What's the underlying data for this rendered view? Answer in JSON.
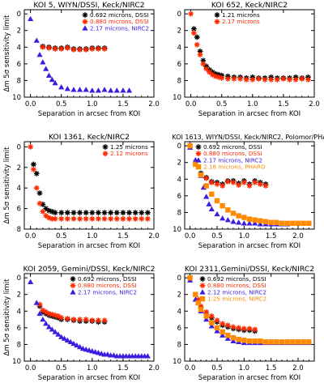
{
  "colors": {
    "black": "#000000",
    "red": "#ff2a00",
    "blue": "#3a1ee0",
    "orange": "#ff8a00"
  },
  "chart_data": [
    {
      "type": "scatter",
      "title": "KOI 5, WIYN/DSSI, Keck/NIRC2",
      "xlabel": "Separation in arcsec from KOI",
      "ylabel": "Δm 5σ sensitivity limit",
      "xlim": [
        -0.1,
        2.0
      ],
      "ylim": [
        10,
        -0.5
      ],
      "xticks": [
        0.0,
        0.5,
        1.0,
        1.5,
        2.0
      ],
      "xtick_labels": [
        "0.0",
        "0.5",
        "1.0",
        "1.5",
        "2.0"
      ],
      "yticks": [
        0,
        2,
        4,
        6,
        8,
        10
      ],
      "ytick_labels": [
        "0",
        "2",
        "4",
        "6",
        "8",
        "10"
      ],
      "legend_position": "top-right",
      "series": [
        {
          "name": "0.692 microns, DSSI",
          "color": "black",
          "marker": "asterisk",
          "x": [
            0.2,
            0.3,
            0.4,
            0.5,
            0.6,
            0.7,
            0.8,
            0.9,
            1.0,
            1.1,
            1.2
          ],
          "y": [
            3.9,
            4.0,
            4.1,
            4.1,
            4.0,
            4.2,
            4.2,
            4.2,
            4.1,
            4.1,
            4.1
          ]
        },
        {
          "name": "0.880 microns, DSSI",
          "color": "red",
          "marker": "asterisk",
          "x": [
            0.2,
            0.3,
            0.4,
            0.5,
            0.6,
            0.7,
            0.8,
            0.9,
            1.0,
            1.1,
            1.2
          ],
          "y": [
            4.0,
            4.1,
            4.2,
            4.2,
            4.1,
            4.3,
            4.3,
            4.3,
            4.2,
            4.2,
            4.2
          ]
        },
        {
          "name": "2.17 microns, NIRC2",
          "color": "blue",
          "marker": "triangle",
          "x": [
            0.0,
            0.1,
            0.15,
            0.2,
            0.25,
            0.3,
            0.35,
            0.4,
            0.5,
            0.6,
            0.7,
            0.8,
            0.9,
            1.0,
            1.1,
            1.2,
            1.3,
            1.4,
            1.5,
            1.6
          ],
          "y": [
            0.6,
            3.2,
            4.9,
            5.8,
            6.6,
            7.4,
            7.9,
            8.3,
            8.8,
            9.0,
            9.1,
            9.1,
            9.1,
            9.2,
            9.2,
            9.1,
            9.2,
            9.2,
            9.2,
            9.2
          ]
        }
      ]
    },
    {
      "type": "scatter",
      "title": "KOI 652, Keck/NIRC2",
      "xlabel": "Separation in arcsec from KOI",
      "ylabel": "",
      "xlim": [
        -0.1,
        2.0
      ],
      "ylim": [
        10,
        -0.5
      ],
      "xticks": [
        0.0,
        0.5,
        1.0,
        1.5,
        2.0
      ],
      "xtick_labels": [
        "0.0",
        "0.5",
        "1.0",
        "1.5",
        "2.0"
      ],
      "yticks": [
        0,
        2,
        4,
        6,
        8,
        10
      ],
      "ytick_labels": [
        "0",
        "2",
        "4",
        "6",
        "8",
        "10"
      ],
      "legend_position": "top-right",
      "series": [
        {
          "name": "1.21 microns",
          "color": "black",
          "marker": "asterisk",
          "x": [
            0.05,
            0.1,
            0.15,
            0.2,
            0.25,
            0.3,
            0.35,
            0.4,
            0.45,
            0.5,
            0.6,
            0.7,
            0.8,
            0.9,
            1.0,
            1.1,
            1.2,
            1.3,
            1.4,
            1.5,
            1.6,
            1.7,
            1.8,
            1.9
          ],
          "y": [
            1.8,
            2.8,
            4.5,
            5.6,
            6.3,
            6.7,
            7.0,
            7.2,
            7.3,
            7.4,
            7.5,
            7.6,
            7.6,
            7.7,
            7.6,
            7.7,
            7.7,
            7.6,
            7.7,
            7.7,
            7.7,
            7.6,
            7.7,
            7.6
          ]
        },
        {
          "name": "2.17 microns",
          "color": "red",
          "marker": "asterisk",
          "x": [
            0.0,
            0.05,
            0.1,
            0.15,
            0.2,
            0.25,
            0.3,
            0.35,
            0.4,
            0.45,
            0.5,
            0.6,
            0.7,
            0.8,
            0.9,
            1.0,
            1.1,
            1.2,
            1.3,
            1.4,
            1.5,
            1.6,
            1.7,
            1.8,
            1.9
          ],
          "y": [
            0.0,
            2.3,
            3.7,
            4.9,
            6.0,
            6.6,
            7.0,
            7.3,
            7.5,
            7.6,
            7.7,
            7.8,
            7.8,
            7.8,
            7.9,
            7.9,
            7.8,
            7.9,
            7.9,
            7.9,
            7.8,
            7.9,
            7.9,
            7.8,
            7.9
          ]
        }
      ]
    },
    {
      "type": "scatter",
      "title": "KOI 1361, Keck/NIRC2",
      "xlabel": "Separation in arcsec from KOI",
      "ylabel": "Δm 5σ sensitivity limit",
      "xlim": [
        -0.1,
        2.0
      ],
      "ylim": [
        8,
        -0.5
      ],
      "xticks": [
        0.0,
        0.5,
        1.0,
        1.5,
        2.0
      ],
      "xtick_labels": [
        "0.0",
        "0.5",
        "1.0",
        "1.5",
        "2.0"
      ],
      "yticks": [
        0,
        2,
        4,
        6,
        8
      ],
      "ytick_labels": [
        "0",
        "2",
        "4",
        "6",
        "8"
      ],
      "legend_position": "top-right",
      "series": [
        {
          "name": "1.25 microns",
          "color": "black",
          "marker": "asterisk",
          "x": [
            0.05,
            0.1,
            0.15,
            0.2,
            0.25,
            0.3,
            0.35,
            0.4,
            0.5,
            0.6,
            0.7,
            0.8,
            0.9,
            1.0,
            1.1,
            1.2,
            1.3,
            1.4,
            1.5,
            1.6,
            1.7,
            1.8,
            1.9
          ],
          "y": [
            1.7,
            2.6,
            4.5,
            5.6,
            6.0,
            6.2,
            6.3,
            6.4,
            6.4,
            6.4,
            6.4,
            6.4,
            6.4,
            6.4,
            6.4,
            6.4,
            6.4,
            6.4,
            6.4,
            6.4,
            6.4,
            6.4,
            6.4
          ]
        },
        {
          "name": "2.12 microns",
          "color": "red",
          "marker": "asterisk",
          "x": [
            0.0,
            0.05,
            0.1,
            0.15,
            0.2,
            0.25,
            0.3,
            0.35,
            0.4,
            0.5,
            0.6,
            0.7,
            0.8,
            0.9,
            1.0,
            1.1,
            1.2,
            1.3,
            1.4,
            1.5,
            1.6,
            1.7,
            1.8,
            1.9
          ],
          "y": [
            0.0,
            2.2,
            4.0,
            5.5,
            6.3,
            6.7,
            6.9,
            7.0,
            7.0,
            7.0,
            7.0,
            7.0,
            7.0,
            7.0,
            7.0,
            7.0,
            7.0,
            7.0,
            7.0,
            7.0,
            7.0,
            7.0,
            7.0,
            7.0
          ]
        }
      ]
    },
    {
      "type": "scatter",
      "title": "KOI 1613, WIYN/DSSI, Keck/NIRC2, Polomor/PHARO",
      "xlabel": "Separation in arcsec from KOI",
      "ylabel": "",
      "xlim": [
        -0.1,
        2.3
      ],
      "ylim": [
        10,
        -0.5
      ],
      "xticks": [
        0.0,
        0.5,
        1.0,
        1.5,
        2.0
      ],
      "xtick_labels": [
        "0.0",
        "0.5",
        "1.0",
        "1.5",
        "2.0"
      ],
      "yticks": [
        0,
        2,
        4,
        6,
        8,
        10
      ],
      "ytick_labels": [
        "0",
        "2",
        "4",
        "6",
        "8",
        "10"
      ],
      "legend_position": "top-right",
      "series": [
        {
          "name": "0.692 microns, DSSI",
          "color": "black",
          "marker": "asterisk",
          "x": [
            0.2,
            0.3,
            0.4,
            0.5,
            0.6,
            0.7,
            0.8,
            0.9,
            1.0,
            1.1,
            1.2,
            1.3,
            1.4
          ],
          "y": [
            3.3,
            3.8,
            4.3,
            4.4,
            4.6,
            4.2,
            4.2,
            4.5,
            4.2,
            4.6,
            4.2,
            4.4,
            4.6
          ]
        },
        {
          "name": "0.880 microns, DSSI",
          "color": "red",
          "marker": "asterisk",
          "x": [
            0.2,
            0.3,
            0.4,
            0.5,
            0.6,
            0.7,
            0.8,
            0.9,
            1.0,
            1.1,
            1.2,
            1.3,
            1.4
          ],
          "y": [
            3.5,
            3.9,
            4.4,
            4.6,
            4.8,
            4.3,
            4.4,
            4.7,
            4.4,
            4.8,
            4.4,
            4.6,
            4.8
          ]
        },
        {
          "name": "2.17 microns, NIRC2",
          "color": "blue",
          "marker": "triangle",
          "x": [
            0.0,
            0.1,
            0.2,
            0.25,
            0.3,
            0.35,
            0.4,
            0.5,
            0.6,
            0.7,
            0.8,
            0.9,
            1.0,
            1.1,
            1.2,
            1.3,
            1.4,
            1.5,
            1.6,
            1.7,
            1.8
          ],
          "y": [
            0.2,
            1.7,
            3.6,
            5.0,
            6.1,
            7.0,
            7.6,
            8.2,
            8.7,
            8.9,
            9.1,
            9.2,
            9.3,
            9.3,
            9.3,
            9.4,
            9.4,
            9.4,
            9.4,
            9.4,
            9.4
          ]
        },
        {
          "name": "2.18 microns, PHARO",
          "color": "orange",
          "marker": "square",
          "x": [
            0.0,
            0.1,
            0.2,
            0.3,
            0.4,
            0.5,
            0.6,
            0.7,
            0.8,
            0.9,
            1.0,
            1.1,
            1.2,
            1.3,
            1.4,
            1.5,
            1.6,
            1.7,
            1.8,
            1.9,
            2.0,
            2.1,
            2.2
          ],
          "y": [
            0.0,
            2.2,
            3.5,
            4.8,
            5.8,
            6.6,
            7.2,
            7.7,
            8.1,
            8.4,
            8.6,
            8.8,
            8.9,
            9.0,
            9.1,
            9.2,
            9.2,
            9.3,
            9.3,
            9.3,
            9.3,
            9.3,
            9.3
          ]
        }
      ]
    },
    {
      "type": "scatter",
      "title": "KOI 2059, Gemini/DSSI, Keck/NIRC2",
      "xlabel": "Separation in arcsec from KOI",
      "ylabel": "Δm 5σ sensitivity limit",
      "xlim": [
        -0.1,
        2.0
      ],
      "ylim": [
        10,
        -0.5
      ],
      "xticks": [
        0.0,
        0.5,
        1.0,
        1.5,
        2.0
      ],
      "xtick_labels": [
        "0.0",
        "0.5",
        "1.0",
        "1.5",
        "2.0"
      ],
      "yticks": [
        0,
        2,
        4,
        6,
        8,
        10
      ],
      "ytick_labels": [
        "0",
        "2",
        "4",
        "6",
        "8",
        "10"
      ],
      "legend_position": "top-right",
      "series": [
        {
          "name": "0.692 microns, DSSI",
          "color": "black",
          "marker": "asterisk",
          "x": [
            0.15,
            0.2,
            0.25,
            0.3,
            0.35,
            0.4,
            0.45,
            0.5,
            0.6,
            0.7,
            0.8,
            0.9,
            1.0,
            1.1,
            1.2
          ],
          "y": [
            3.4,
            4.1,
            4.3,
            4.5,
            4.6,
            4.7,
            4.8,
            5.0,
            5.0,
            5.1,
            5.2,
            5.2,
            5.2,
            5.3,
            5.3
          ]
        },
        {
          "name": "0.880 microns, DSSI",
          "color": "red",
          "marker": "asterisk",
          "x": [
            0.15,
            0.2,
            0.25,
            0.3,
            0.35,
            0.4,
            0.45,
            0.5,
            0.6,
            0.7,
            0.8,
            0.9,
            1.0,
            1.1,
            1.2
          ],
          "y": [
            3.2,
            3.9,
            4.1,
            4.3,
            4.4,
            4.5,
            4.6,
            4.8,
            4.9,
            5.0,
            5.0,
            5.0,
            5.1,
            5.1,
            5.1
          ]
        },
        {
          "name": "2.17 microns, NIRC2",
          "color": "blue",
          "marker": "triangle",
          "x": [
            0.0,
            0.1,
            0.15,
            0.2,
            0.25,
            0.3,
            0.35,
            0.4,
            0.45,
            0.5,
            0.55,
            0.6,
            0.65,
            0.7,
            0.75,
            0.8,
            0.85,
            0.9,
            0.95,
            1.0,
            1.05,
            1.1,
            1.15,
            1.2,
            1.25,
            1.3,
            1.35,
            1.4,
            1.45,
            1.5,
            1.55,
            1.6,
            1.65,
            1.7,
            1.75,
            1.8,
            1.85,
            1.9
          ],
          "y": [
            0.5,
            3.0,
            4.3,
            5.0,
            5.5,
            5.9,
            6.2,
            6.5,
            6.8,
            7.1,
            7.3,
            7.5,
            7.7,
            7.9,
            8.1,
            8.3,
            8.5,
            8.6,
            8.7,
            8.8,
            8.9,
            9.0,
            9.1,
            9.2,
            9.2,
            9.3,
            9.3,
            9.4,
            9.4,
            9.4,
            9.4,
            9.4,
            9.4,
            9.4,
            9.4,
            9.4,
            9.4,
            9.4
          ]
        }
      ]
    },
    {
      "type": "scatter",
      "title": "KOI 2311,Gemini/DSSI, Keck/NIRC2",
      "xlabel": "Separation in arcsec from KOI",
      "ylabel": "",
      "xlim": [
        -0.1,
        2.3
      ],
      "ylim": [
        10,
        -0.5
      ],
      "xticks": [
        0.0,
        0.5,
        1.0,
        1.5,
        2.0
      ],
      "xtick_labels": [
        "0.0",
        "0.5",
        "1.0",
        "1.5",
        "2.0"
      ],
      "yticks": [
        0,
        2,
        4,
        6,
        8,
        10
      ],
      "ytick_labels": [
        "0",
        "2",
        "4",
        "6",
        "8",
        "10"
      ],
      "legend_position": "top-right",
      "series": [
        {
          "name": "0.692 microns, DSSI",
          "color": "black",
          "marker": "asterisk",
          "x": [
            0.15,
            0.2,
            0.3,
            0.4,
            0.5,
            0.6,
            0.7,
            0.8,
            0.9,
            1.0,
            1.1,
            1.2
          ],
          "y": [
            2.8,
            3.6,
            4.3,
            4.8,
            5.3,
            5.7,
            5.9,
            6.1,
            6.2,
            6.3,
            6.3,
            6.4
          ]
        },
        {
          "name": "0.880 microns, DSSI",
          "color": "red",
          "marker": "asterisk",
          "x": [
            0.15,
            0.2,
            0.3,
            0.4,
            0.5,
            0.6,
            0.7,
            0.8,
            0.9,
            1.0,
            1.1,
            1.2
          ],
          "y": [
            2.6,
            3.4,
            4.1,
            4.6,
            5.1,
            5.5,
            5.7,
            5.9,
            6.0,
            6.1,
            6.1,
            6.2
          ]
        },
        {
          "name": "2.12 microns, NIRC2",
          "color": "blue",
          "marker": "triangle",
          "x": [
            0.0,
            0.1,
            0.2,
            0.3,
            0.4,
            0.5,
            0.6,
            0.7,
            0.8,
            0.9,
            1.0,
            1.1,
            1.2,
            1.3,
            1.4,
            1.5,
            1.6,
            1.7,
            1.8,
            1.9,
            2.0,
            2.1,
            2.2
          ],
          "y": [
            0.3,
            2.6,
            4.0,
            5.0,
            5.8,
            6.4,
            6.9,
            7.3,
            7.6,
            7.7,
            7.8,
            7.8,
            7.8,
            7.8,
            7.8,
            7.8,
            7.8,
            7.8,
            7.8,
            7.8,
            7.8,
            7.8,
            7.8
          ]
        },
        {
          "name": "1.25 microns, NIRC2",
          "color": "orange",
          "marker": "square",
          "x": [
            0.0,
            0.1,
            0.15,
            0.2,
            0.3,
            0.4,
            0.5,
            0.6,
            0.7,
            0.8,
            0.9,
            1.0,
            1.1,
            1.2,
            1.3,
            1.4,
            1.5,
            1.6,
            1.7,
            1.8,
            1.9,
            2.0,
            2.1,
            2.2
          ],
          "y": [
            0.0,
            2.0,
            3.0,
            3.8,
            4.6,
            5.4,
            6.0,
            6.5,
            6.9,
            7.2,
            7.4,
            7.5,
            7.6,
            7.6,
            7.6,
            7.7,
            7.7,
            7.7,
            7.7,
            7.7,
            7.7,
            7.7,
            7.7,
            7.7
          ]
        }
      ]
    }
  ]
}
